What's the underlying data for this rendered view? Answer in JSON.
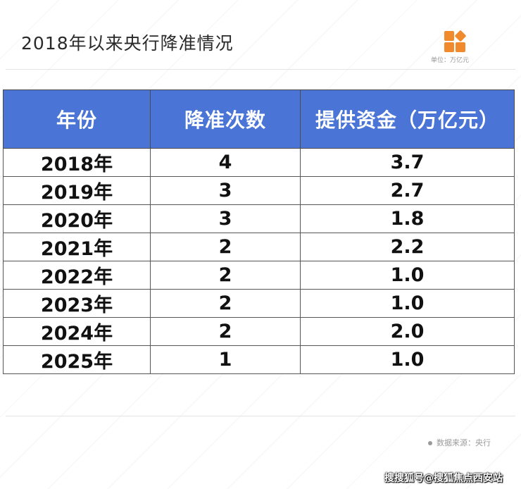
{
  "title": "2018年以来央行降准情况",
  "unit": "单位：万亿元",
  "source": "数据来源：央行",
  "footer_watermark": "搜搜狐号@搜狐焦点西安站",
  "colors": {
    "header_bg": "#4a74d6",
    "logo": "#f08a2c"
  },
  "icons": {
    "logo": "brand-logo-icon"
  },
  "table": {
    "headers": [
      "年份",
      "降准次数",
      "提供资金（万亿元）"
    ],
    "rows": [
      [
        "2018年",
        "4",
        "3.7"
      ],
      [
        "2019年",
        "3",
        "2.7"
      ],
      [
        "2020年",
        "3",
        "1.8"
      ],
      [
        "2021年",
        "2",
        "2.2"
      ],
      [
        "2022年",
        "2",
        "1.0"
      ],
      [
        "2023年",
        "2",
        "1.0"
      ],
      [
        "2024年",
        "2",
        "2.0"
      ],
      [
        "2025年",
        "1",
        "1.0"
      ]
    ]
  }
}
